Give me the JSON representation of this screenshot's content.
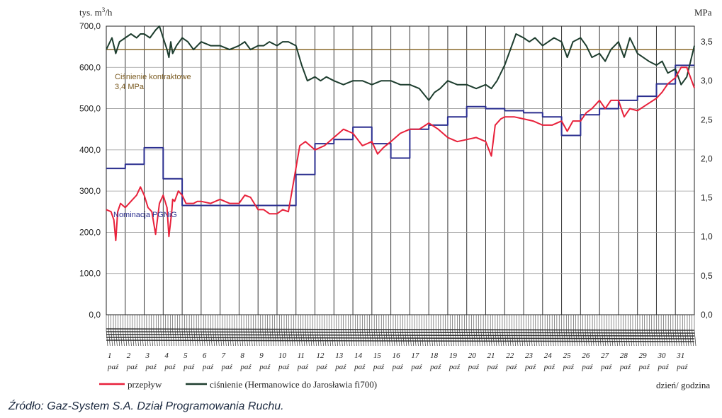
{
  "chart_data": {
    "type": "line",
    "y_left": {
      "unit_base": "tys. m",
      "unit_sup": "3",
      "unit_tail": "/h",
      "ylim": [
        0,
        700
      ],
      "ticks": [
        "0,0",
        "100,0",
        "200,0",
        "300,0",
        "400,0",
        "500,0",
        "600,0",
        "700,0"
      ]
    },
    "y_right": {
      "unit": "MPa",
      "ylim": [
        0,
        3.7
      ],
      "ticks": [
        "0,0",
        "0,5",
        "1,0",
        "1,5",
        "2,0",
        "2,5",
        "3,0",
        "3,5"
      ]
    },
    "x": {
      "days": [
        "1",
        "2",
        "3",
        "4",
        "5",
        "6",
        "7",
        "8",
        "9",
        "10",
        "11",
        "12",
        "13",
        "14",
        "15",
        "16",
        "17",
        "18",
        "19",
        "20",
        "21",
        "22",
        "23",
        "24",
        "25",
        "26",
        "27",
        "28",
        "29",
        "30",
        "31"
      ],
      "month_label": "paź",
      "xlabel": "dzień/ godzina",
      "xlim": [
        0,
        31
      ]
    },
    "annotations": {
      "contract_pressure_line1": "Ciśnienie kontraktowe",
      "contract_pressure_line2": "3,4 MPa",
      "contract_pressure_value": 3.4,
      "nomination": "Nominacja PGNiG"
    },
    "series": [
      {
        "name": "przepływ",
        "color": "#e8213b",
        "axis": "left",
        "x": [
          0,
          0.25,
          0.4,
          0.5,
          0.6,
          0.75,
          1.0,
          1.3,
          1.6,
          1.8,
          2.0,
          2.2,
          2.4,
          2.6,
          2.8,
          3.0,
          3.2,
          3.3,
          3.45,
          3.5,
          3.6,
          3.8,
          4.0,
          4.2,
          4.4,
          4.6,
          4.8,
          5.0,
          5.5,
          6.0,
          6.5,
          7.0,
          7.3,
          7.6,
          8.0,
          8.3,
          8.6,
          9.0,
          9.3,
          9.6,
          9.9,
          10.2,
          10.5,
          11.0,
          11.5,
          12.0,
          12.5,
          13.0,
          13.5,
          14.0,
          14.3,
          14.6,
          15.0,
          15.5,
          16.0,
          16.5,
          17.0,
          17.5,
          18.0,
          18.5,
          19.0,
          19.5,
          20.0,
          20.3,
          20.5,
          20.8,
          21.0,
          21.5,
          22.0,
          22.5,
          23.0,
          23.5,
          24.0,
          24.3,
          24.6,
          25.0,
          25.3,
          25.6,
          26.0,
          26.3,
          26.6,
          27.0,
          27.3,
          27.6,
          28.0,
          28.5,
          29.0,
          29.3,
          29.6,
          30.0,
          30.3,
          30.6,
          31.0
        ],
        "y": [
          255,
          250,
          230,
          180,
          250,
          270,
          260,
          275,
          290,
          310,
          290,
          260,
          250,
          195,
          270,
          290,
          260,
          190,
          250,
          280,
          275,
          300,
          290,
          270,
          270,
          270,
          275,
          275,
          270,
          280,
          270,
          270,
          290,
          285,
          255,
          255,
          245,
          245,
          255,
          250,
          330,
          410,
          420,
          400,
          410,
          430,
          450,
          440,
          410,
          420,
          390,
          405,
          420,
          440,
          450,
          450,
          465,
          450,
          430,
          420,
          425,
          430,
          420,
          385,
          460,
          475,
          480,
          480,
          475,
          470,
          460,
          460,
          470,
          445,
          470,
          470,
          490,
          500,
          520,
          500,
          520,
          520,
          480,
          500,
          495,
          510,
          525,
          540,
          560,
          575,
          600,
          600,
          550
        ]
      },
      {
        "name": "ciśnienie (Hermanowice do Jarosławia  fi700)",
        "color": "#1d3d2e",
        "axis": "right",
        "x": [
          0,
          0.3,
          0.5,
          0.7,
          1.0,
          1.3,
          1.6,
          1.8,
          2.0,
          2.3,
          2.6,
          2.8,
          3.0,
          3.2,
          3.3,
          3.4,
          3.5,
          3.7,
          4.0,
          4.3,
          4.6,
          5.0,
          5.5,
          6.0,
          6.5,
          7.0,
          7.3,
          7.6,
          8.0,
          8.3,
          8.6,
          9.0,
          9.3,
          9.6,
          10.0,
          10.3,
          10.6,
          11.0,
          11.3,
          11.6,
          12.0,
          12.5,
          13.0,
          13.5,
          14.0,
          14.5,
          15.0,
          15.5,
          16.0,
          16.5,
          17.0,
          17.3,
          17.6,
          18.0,
          18.5,
          19.0,
          19.5,
          20.0,
          20.3,
          20.6,
          21.0,
          21.3,
          21.6,
          22.0,
          22.3,
          22.6,
          23.0,
          23.3,
          23.6,
          24.0,
          24.3,
          24.6,
          25.0,
          25.3,
          25.6,
          26.0,
          26.3,
          26.6,
          27.0,
          27.3,
          27.6,
          28.0,
          28.3,
          28.6,
          29.0,
          29.3,
          29.6,
          30.0,
          30.3,
          30.6,
          31.0
        ],
        "y": [
          3.4,
          3.55,
          3.35,
          3.5,
          3.55,
          3.6,
          3.55,
          3.6,
          3.6,
          3.55,
          3.65,
          3.7,
          3.55,
          3.4,
          3.3,
          3.5,
          3.35,
          3.45,
          3.55,
          3.5,
          3.4,
          3.5,
          3.45,
          3.45,
          3.4,
          3.45,
          3.5,
          3.4,
          3.45,
          3.45,
          3.5,
          3.45,
          3.5,
          3.5,
          3.45,
          3.2,
          3.0,
          3.05,
          3.0,
          3.05,
          3.0,
          2.95,
          3.0,
          3.0,
          2.95,
          3.0,
          3.0,
          2.95,
          2.95,
          2.9,
          2.75,
          2.85,
          2.9,
          3.0,
          2.95,
          2.95,
          2.9,
          2.95,
          2.9,
          3.0,
          3.2,
          3.4,
          3.6,
          3.55,
          3.5,
          3.55,
          3.45,
          3.5,
          3.55,
          3.5,
          3.3,
          3.5,
          3.55,
          3.45,
          3.3,
          3.35,
          3.25,
          3.4,
          3.5,
          3.3,
          3.55,
          3.35,
          3.3,
          3.25,
          3.2,
          3.25,
          3.1,
          3.15,
          2.95,
          3.05,
          3.45
        ]
      },
      {
        "name": "Nominacja PGNiG",
        "color": "#2b2f8f",
        "axis": "left",
        "step": true,
        "x": [
          0,
          1,
          2,
          3,
          4,
          5,
          9,
          10,
          11,
          12,
          13,
          14,
          15,
          16,
          17,
          18,
          19,
          20,
          21,
          22,
          23,
          24,
          25,
          26,
          27,
          28,
          29,
          30,
          31
        ],
        "y": [
          355,
          365,
          405,
          330,
          265,
          265,
          265,
          340,
          415,
          425,
          455,
          415,
          380,
          450,
          460,
          480,
          505,
          500,
          495,
          490,
          480,
          435,
          485,
          500,
          520,
          530,
          560,
          605,
          605
        ]
      }
    ]
  },
  "legend": {
    "flow_label": "przepływ",
    "pressure_label": "ciśnienie (Hermanowice do Jarosławia  fi700)"
  },
  "source": "Źródło: Gaz-System S.A. Dział Programowania Ruchu."
}
